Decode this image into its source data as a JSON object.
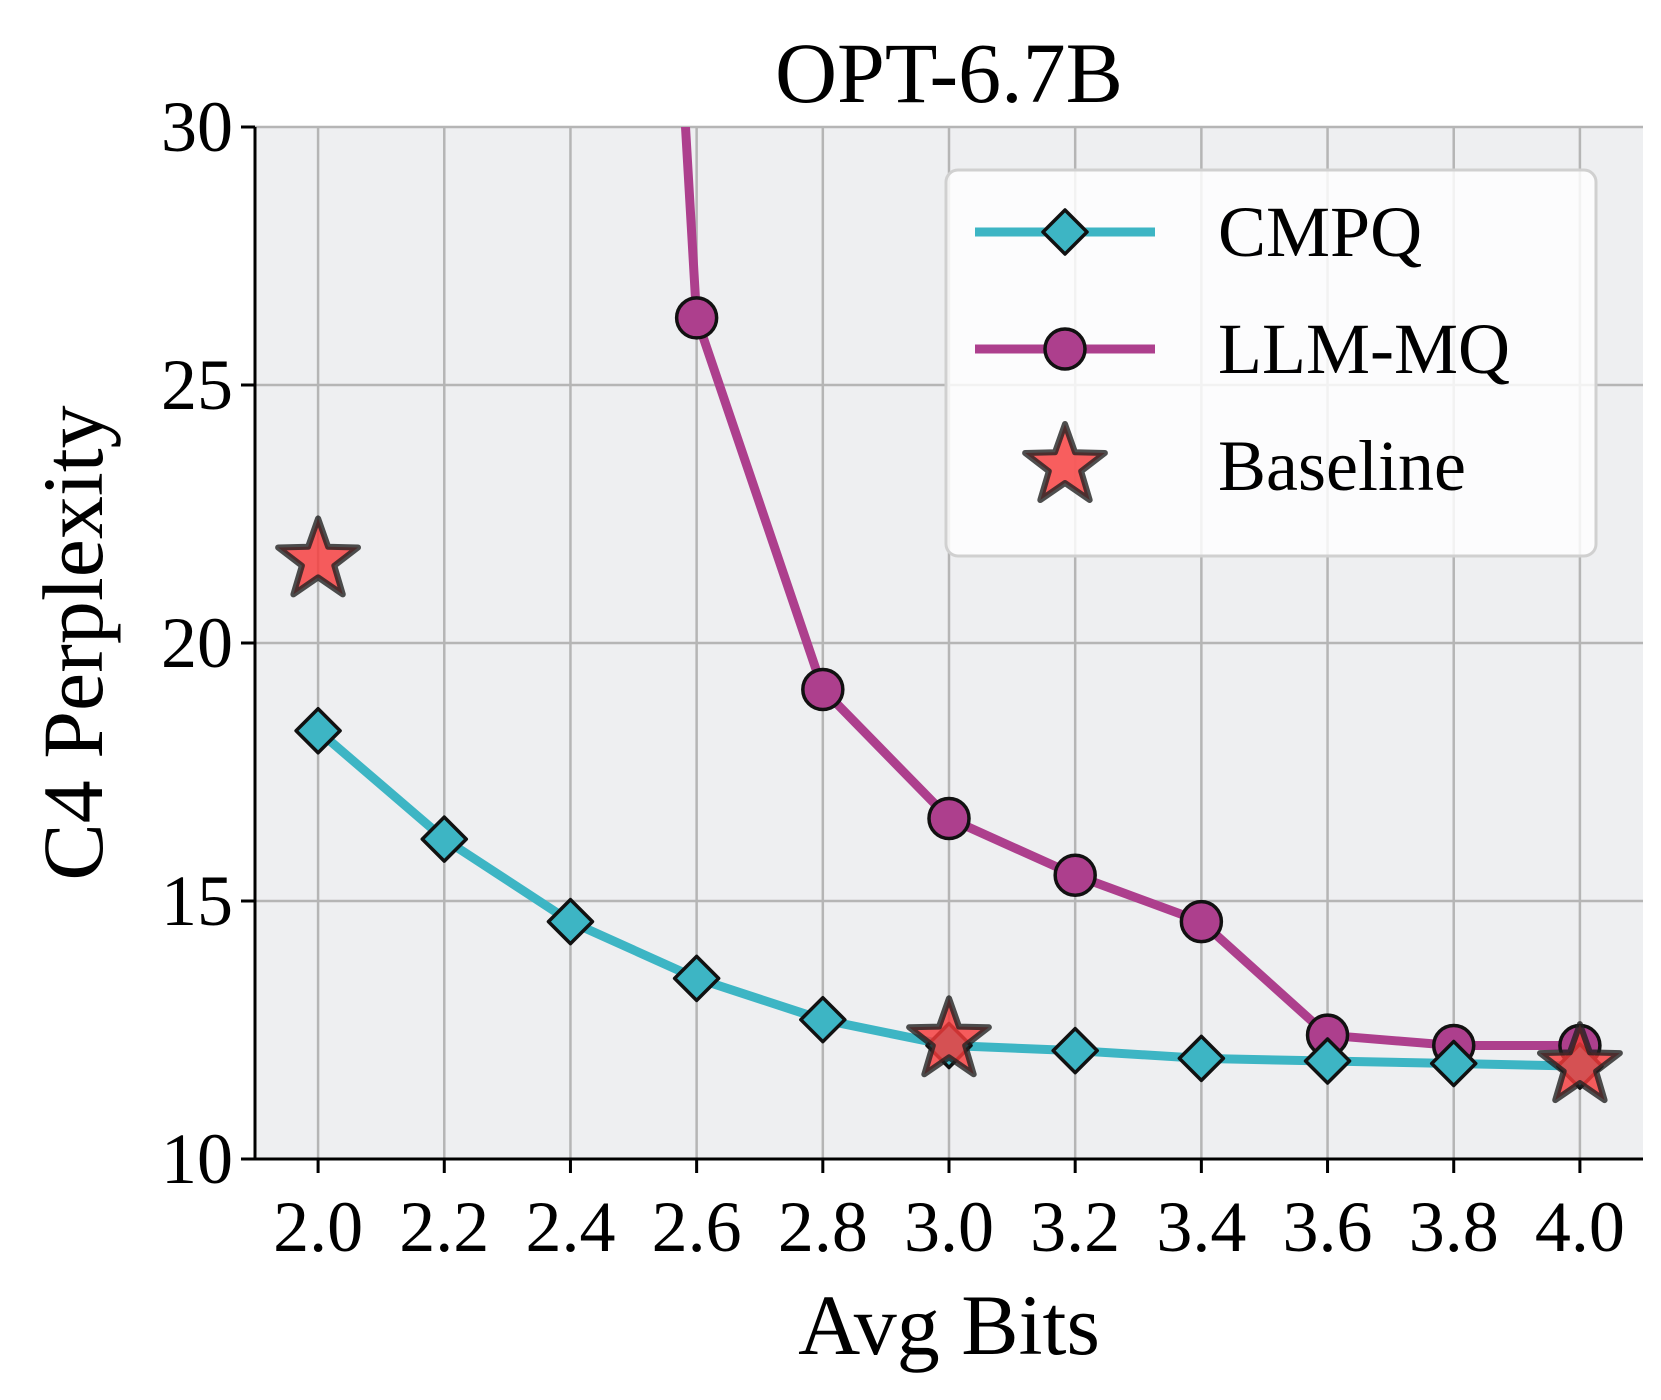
{
  "chart_data": {
    "type": "line",
    "title": "OPT-6.7B",
    "xlabel": "Avg Bits",
    "ylabel": "C4 Perplexity",
    "xlim": [
      1.9,
      4.1
    ],
    "ylim": [
      10,
      30
    ],
    "xticks": [
      2.0,
      2.2,
      2.4,
      2.6,
      2.8,
      3.0,
      3.2,
      3.4,
      3.6,
      3.8,
      4.0
    ],
    "xtick_labels": [
      "2.0",
      "2.2",
      "2.4",
      "2.6",
      "2.8",
      "3.0",
      "3.2",
      "3.4",
      "3.6",
      "3.8",
      "4.0"
    ],
    "yticks": [
      10,
      15,
      20,
      25,
      30
    ],
    "ytick_labels": [
      "10",
      "15",
      "20",
      "25",
      "30"
    ],
    "grid": true,
    "legend_position": "top-right",
    "colors": {
      "background": "#eeeff1",
      "grid": "#b5b5b5",
      "cmpq": "#3db5c4",
      "llmmq": "#ad3f8d",
      "baseline": "#f73b3b"
    },
    "series": [
      {
        "name": "CMPQ",
        "marker": "diamond",
        "x": [
          2.0,
          2.2,
          2.4,
          2.6,
          2.8,
          3.0,
          3.2,
          3.4,
          3.6,
          3.8,
          4.0
        ],
        "y": [
          18.3,
          16.2,
          14.6,
          13.5,
          12.7,
          12.2,
          12.1,
          11.95,
          11.9,
          11.85,
          11.8
        ]
      },
      {
        "name": "LLM-MQ",
        "marker": "circle",
        "x": [
          2.58,
          2.6,
          2.8,
          3.0,
          3.2,
          3.4,
          3.6,
          3.8,
          4.0
        ],
        "y": [
          30.5,
          26.3,
          19.1,
          16.6,
          15.5,
          14.6,
          12.4,
          12.2,
          12.2
        ],
        "line_only_points": 1
      },
      {
        "name": "Baseline",
        "marker": "star",
        "x": [
          2.0,
          3.0,
          4.0
        ],
        "y": [
          21.6,
          12.3,
          11.8
        ]
      }
    ]
  }
}
